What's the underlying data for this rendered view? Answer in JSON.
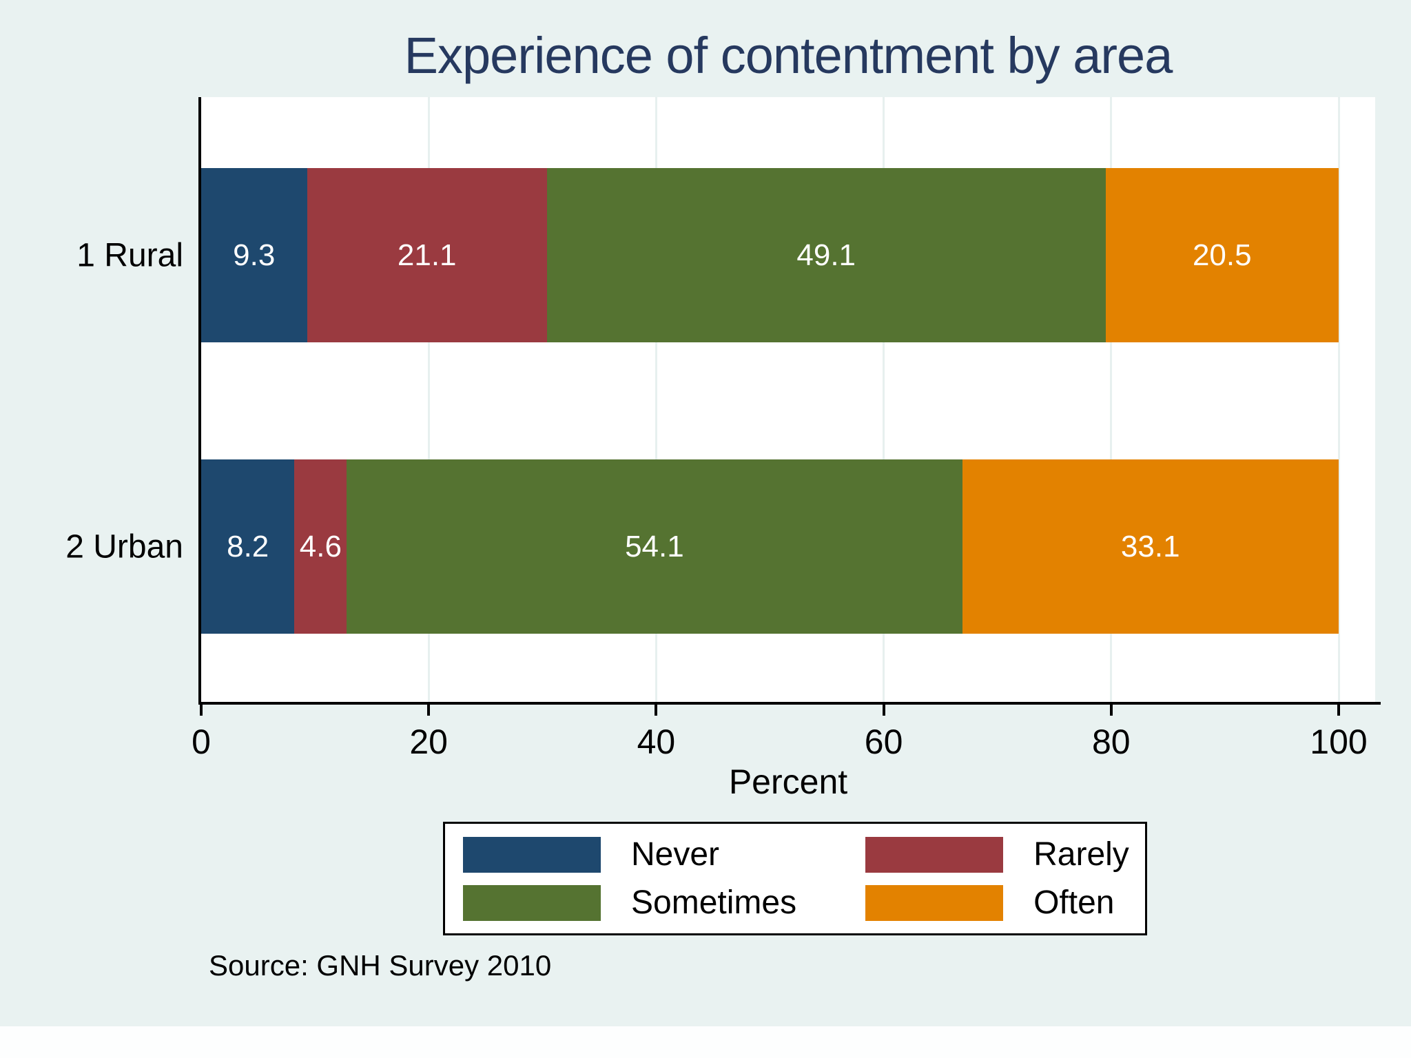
{
  "title": "Experience of contentment by area",
  "xlabel": "Percent",
  "source": "Source: GNH Survey 2010",
  "colors": {
    "background": "#e9f2f1",
    "plot_background": "#ffffff",
    "title_text": "#26395f",
    "axis": "#000000",
    "gridline": "#e7f0ef",
    "bar_label_text": "#ffffff",
    "never": "#1e486e",
    "rarely": "#9a3a40",
    "sometimes": "#557331",
    "often": "#e38200"
  },
  "chart_data": {
    "type": "bar",
    "subtype": "stacked-horizontal",
    "title": "Experience of contentment by area",
    "categories": [
      "1 Rural",
      "2 Urban"
    ],
    "series": [
      {
        "name": "Never",
        "color": "#1e486e",
        "values": [
          9.3,
          8.2
        ]
      },
      {
        "name": "Rarely",
        "color": "#9a3a40",
        "values": [
          21.1,
          4.6
        ]
      },
      {
        "name": "Sometimes",
        "color": "#557331",
        "values": [
          49.1,
          54.1
        ]
      },
      {
        "name": "Often",
        "color": "#e38200",
        "values": [
          20.5,
          33.1
        ]
      }
    ],
    "xlabel": "Percent",
    "xlim": [
      0,
      100
    ],
    "x_ticks": [
      0,
      20,
      40,
      60,
      80,
      100
    ],
    "grid": "vertical gridlines at x ticks",
    "bar_value_labels": "white numeric labels centered inside each segment",
    "legend_position": "bottom center, boxed, 2 columns",
    "legend": [
      "Never",
      "Rarely",
      "Sometimes",
      "Often"
    ],
    "source": "Source: GNH Survey 2010"
  }
}
